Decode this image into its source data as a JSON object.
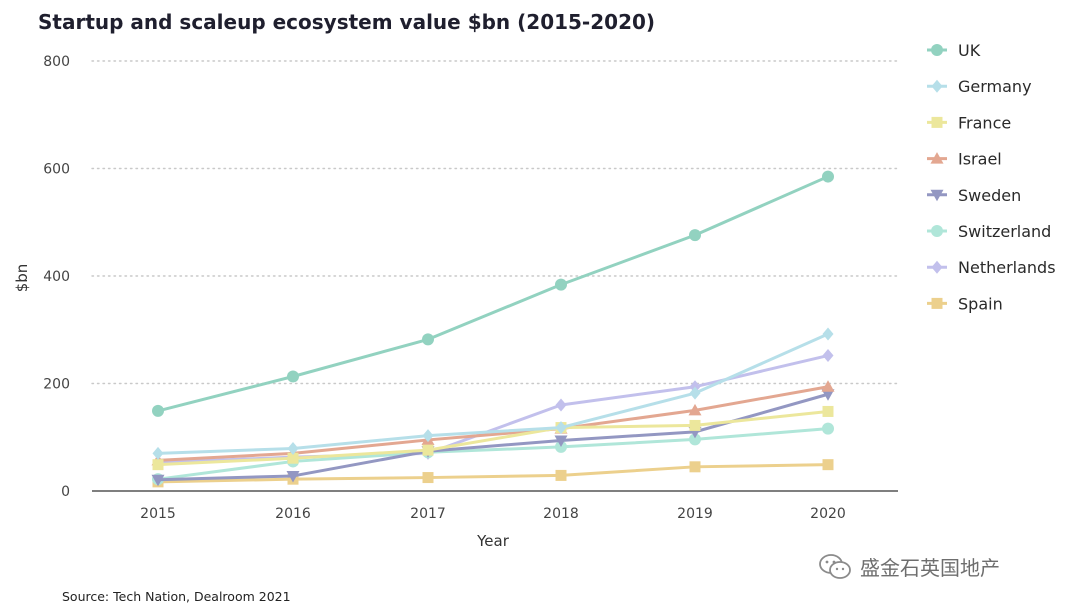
{
  "chart_data": {
    "type": "line",
    "title": "Startup and scaleup ecosystem value $bn (2015-2020)",
    "xlabel": "Year",
    "ylabel": "$bn",
    "x": [
      "2015",
      "2016",
      "2017",
      "2018",
      "2019",
      "2020"
    ],
    "ylim": [
      0,
      800
    ],
    "yticks": [
      "0",
      "200",
      "400",
      "600",
      "800"
    ],
    "grid": "horizontal dotted",
    "legend_position": "right",
    "series": [
      {
        "name": "UK",
        "color": "#92d2c0",
        "marker": "circle",
        "values": [
          149,
          213,
          282,
          384,
          476,
          585
        ]
      },
      {
        "name": "Germany",
        "color": "#b6dfe9",
        "marker": "diamond",
        "values": [
          70,
          79,
          103,
          118,
          182,
          292
        ]
      },
      {
        "name": "France",
        "color": "#ece79c",
        "marker": "square",
        "values": [
          49,
          61,
          76,
          118,
          122,
          148
        ]
      },
      {
        "name": "Israel",
        "color": "#e3a791",
        "marker": "triangle-up",
        "values": [
          57,
          70,
          95,
          116,
          150,
          194
        ]
      },
      {
        "name": "Sweden",
        "color": "#9397c2",
        "marker": "triangle-down",
        "values": [
          21,
          28,
          74,
          94,
          110,
          180
        ]
      },
      {
        "name": "Switzerland",
        "color": "#b0e6d9",
        "marker": "circle",
        "values": [
          22,
          55,
          72,
          82,
          96,
          116
        ]
      },
      {
        "name": "Netherlands",
        "color": "#c2c0ec",
        "marker": "diamond",
        "values": [
          53,
          63,
          70,
          160,
          194,
          252
        ]
      },
      {
        "name": "Spain",
        "color": "#ecd08d",
        "marker": "square",
        "values": [
          17,
          22,
          25,
          29,
          45,
          49
        ]
      }
    ]
  },
  "source": "Source: Tech Nation, Dealroom 2021",
  "watermark": {
    "text": "盛金石英国地产",
    "icon": "wechat-icon"
  }
}
